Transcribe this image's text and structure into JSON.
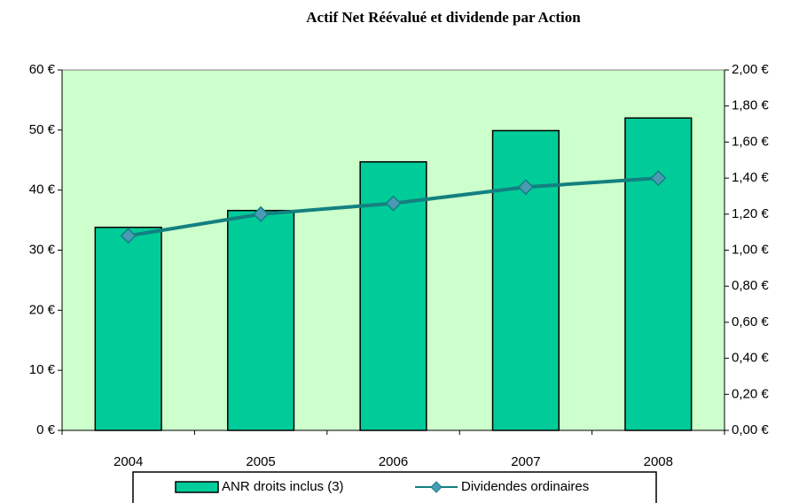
{
  "chart_data": {
    "type": "bar",
    "title": "Actif Net Réévalué et dividende par Action",
    "categories": [
      "2004",
      "2005",
      "2006",
      "2007",
      "2008"
    ],
    "series": [
      {
        "name": "ANR droits inclus (3)",
        "type": "bar",
        "color": "#00cc99",
        "values": [
          33.8,
          36.6,
          44.7,
          49.9,
          52.0
        ]
      },
      {
        "name": "Dividendes ordinaires",
        "type": "line",
        "axis": "y2",
        "color": "#138080",
        "marker_color": "#4a9ab5",
        "values": [
          1.08,
          1.2,
          1.26,
          1.35,
          1.4
        ]
      }
    ],
    "ylim": [
      0,
      60
    ],
    "yticks": [
      {
        "value": 0,
        "label": "0 €"
      },
      {
        "value": 10,
        "label": "10 €"
      },
      {
        "value": 20,
        "label": "20 €"
      },
      {
        "value": 30,
        "label": "30 €"
      },
      {
        "value": 40,
        "label": "40 €"
      },
      {
        "value": 50,
        "label": "50 €"
      },
      {
        "value": 60,
        "label": "60 €"
      }
    ],
    "y2lim": [
      0,
      2
    ],
    "y2ticks": [
      {
        "value": 0,
        "label": "0,00 €"
      },
      {
        "value": 0.2,
        "label": "0,20 €"
      },
      {
        "value": 0.4,
        "label": "0,40 €"
      },
      {
        "value": 0.6,
        "label": "0,60 €"
      },
      {
        "value": 0.8,
        "label": "0,80 €"
      },
      {
        "value": 1,
        "label": "1,00 €"
      },
      {
        "value": 1.2,
        "label": "1,20 €"
      },
      {
        "value": 1.4,
        "label": "1,40 €"
      },
      {
        "value": 1.6,
        "label": "1,60 €"
      },
      {
        "value": 1.8,
        "label": "1,80 €"
      },
      {
        "value": 2,
        "label": "2,00 €"
      }
    ],
    "plot_background": "#ccffcc",
    "legend": "bottom"
  }
}
